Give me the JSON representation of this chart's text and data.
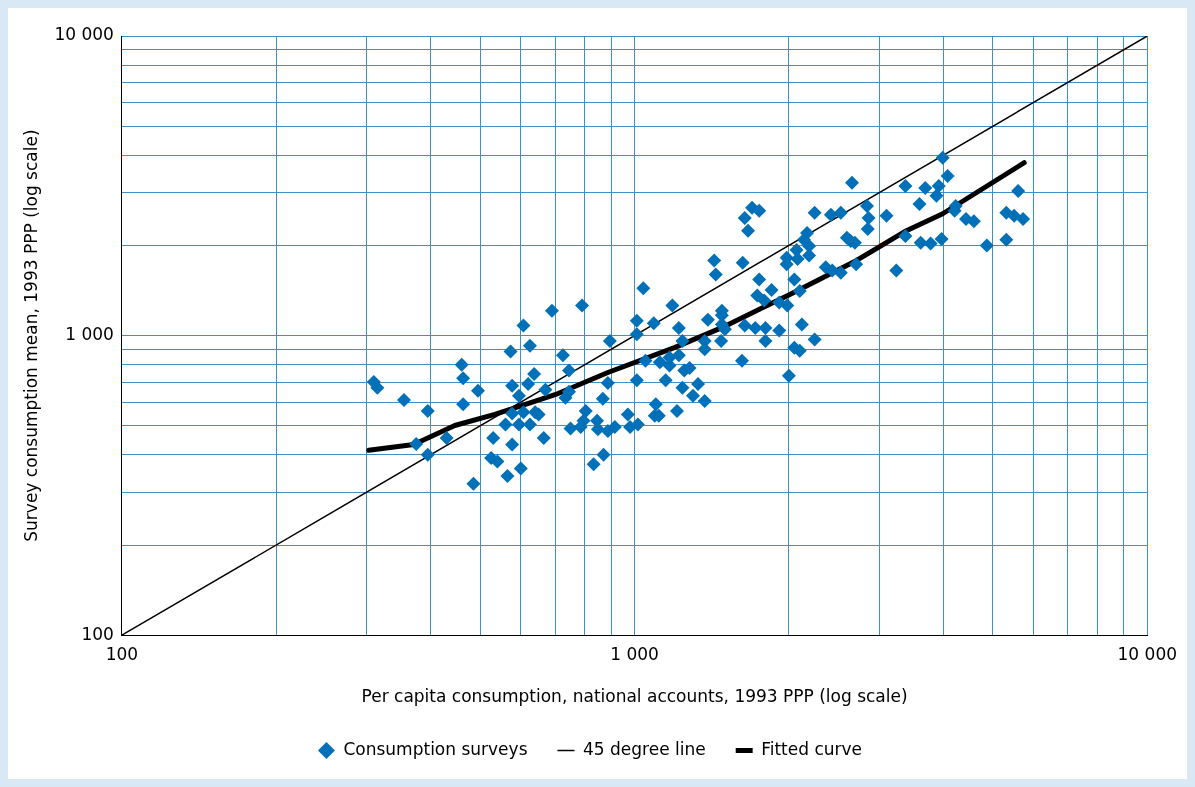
{
  "chart_data": {
    "type": "scatter",
    "xlabel": "Per capita consumption, national accounts, 1993 PPP (log scale)",
    "ylabel": "Survey consumption mean, 1993 PPP (log scale)",
    "log": "xy",
    "grid": true,
    "legend": "bottom",
    "line_style": "solid",
    "xlim": [
      100,
      10000
    ],
    "ylim": [
      100,
      10000
    ],
    "xticks": [
      {
        "value": 100,
        "label": "100"
      },
      {
        "value": 200,
        "label": null
      },
      {
        "value": 300,
        "label": null
      },
      {
        "value": 400,
        "label": null
      },
      {
        "value": 500,
        "label": null
      },
      {
        "value": 600,
        "label": null
      },
      {
        "value": 700,
        "label": null
      },
      {
        "value": 800,
        "label": null
      },
      {
        "value": 900,
        "label": null
      },
      {
        "value": 1000,
        "label": "1 000"
      },
      {
        "value": 2000,
        "label": null
      },
      {
        "value": 3000,
        "label": null
      },
      {
        "value": 4000,
        "label": null
      },
      {
        "value": 5000,
        "label": null
      },
      {
        "value": 6000,
        "label": null
      },
      {
        "value": 7000,
        "label": null
      },
      {
        "value": 8000,
        "label": null
      },
      {
        "value": 9000,
        "label": null
      },
      {
        "value": 10000,
        "label": "10 000"
      }
    ],
    "yticks": [
      {
        "value": 100,
        "label": "100"
      },
      {
        "value": 200,
        "label": null
      },
      {
        "value": 300,
        "label": null
      },
      {
        "value": 400,
        "label": null
      },
      {
        "value": 500,
        "label": null
      },
      {
        "value": 600,
        "label": null
      },
      {
        "value": 700,
        "label": null
      },
      {
        "value": 800,
        "label": null
      },
      {
        "value": 900,
        "label": null
      },
      {
        "value": 1000,
        "label": "1 000"
      },
      {
        "value": 2000,
        "label": null
      },
      {
        "value": 3000,
        "label": null
      },
      {
        "value": 4000,
        "label": null
      },
      {
        "value": 5000,
        "label": null
      },
      {
        "value": 6000,
        "label": null
      },
      {
        "value": 7000,
        "label": null
      },
      {
        "value": 8000,
        "label": null
      },
      {
        "value": 9000,
        "label": null
      },
      {
        "value": 10000,
        "label": "10 000"
      }
    ],
    "series": [
      {
        "name": "Consumption surveys",
        "marker": "diamond",
        "color": "#0070b8",
        "x": [
          310,
          315,
          355,
          375,
          395,
          395,
          430,
          460,
          463,
          463,
          495,
          485,
          530,
          525,
          540,
          565,
          577,
          573,
          607,
          625,
          637,
          690,
          577,
          620,
          670,
          595,
          577,
          607,
          640,
          560,
          595,
          625,
          650,
          665,
          600,
          790,
          1040,
          725,
          745,
          733,
          745,
          895,
          887,
          867,
          803,
          795,
          750,
          785,
          845,
          848,
          887,
          915,
          970,
          980,
          1015,
          870,
          832,
          1010,
          1010,
          1010,
          1090,
          1050,
          1120,
          1150,
          1100,
          1095,
          1115,
          1185,
          1220,
          1170,
          1170,
          1220,
          1250,
          1280,
          1240,
          1210,
          1240,
          1300,
          1330,
          1370,
          1370,
          1370,
          1390,
          1480,
          1480,
          1475,
          1500,
          1620,
          1480,
          1625,
          1640,
          1640,
          1665,
          1695,
          1750,
          1735,
          1750,
          1720,
          1790,
          1800,
          1800,
          1850,
          1915,
          1915,
          1985,
          1980,
          1980,
          2000,
          2050,
          2070,
          2080,
          2050,
          2100,
          2100,
          2120,
          2140,
          2170,
          2190,
          2190,
          2245,
          2245,
          2360,
          2415,
          2430,
          2525,
          2525,
          2595,
          2640,
          2655,
          2705,
          2690,
          2840,
          2860,
          2850,
          3100,
          3990,
          4080,
          3375,
          3690,
          3920,
          3880,
          3595,
          4230,
          4210,
          4430,
          4590,
          3375,
          3615,
          3780,
          3970,
          3240,
          4865,
          5310,
          5310,
          5500,
          5725,
          5600,
          1430,
          1440
        ],
        "values": [
          700,
          670,
          610,
          435,
          560,
          400,
          455,
          800,
          720,
          590,
          655,
          320,
          455,
          390,
          380,
          340,
          433,
          885,
          1080,
          925,
          745,
          1210,
          680,
          690,
          660,
          630,
          550,
          555,
          555,
          505,
          505,
          505,
          545,
          455,
          360,
          1260,
          1440,
          860,
          765,
          620,
          650,
          960,
          695,
          615,
          560,
          520,
          490,
          495,
          520,
          487,
          480,
          495,
          545,
          495,
          505,
          400,
          372,
          1120,
          1010,
          710,
          1100,
          825,
          815,
          710,
          590,
          540,
          540,
          1260,
          1060,
          845,
          795,
          860,
          765,
          780,
          960,
          560,
          670,
          630,
          690,
          605,
          900,
          960,
          1130,
          1210,
          1090,
          960,
          1050,
          825,
          1170,
          1750,
          1080,
          2470,
          2240,
          2670,
          2610,
          1360,
          1540,
          1060,
          1310,
          1060,
          960,
          1420,
          1040,
          1290,
          1260,
          1820,
          1730,
          735,
          1540,
          1930,
          1800,
          910,
          890,
          1410,
          1090,
          2090,
          2200,
          1990,
          1850,
          970,
          2570,
          1690,
          2530,
          1650,
          2570,
          1620,
          2120,
          2070,
          3240,
          1730,
          2040,
          2710,
          2470,
          2270,
          2510,
          3920,
          3410,
          3160,
          3110,
          3160,
          2930,
          2750,
          2710,
          2610,
          2450,
          2410,
          2150,
          2040,
          2030,
          2100,
          1650,
          2000,
          2090,
          2570,
          2510,
          2450,
          3040,
          1780,
          1600
        ]
      },
      {
        "name": "45 degree line",
        "type": "line",
        "marker": "none",
        "color": "#000000",
        "x": [
          100,
          10000
        ],
        "values": [
          100,
          10000
        ]
      },
      {
        "name": "Fitted curve",
        "type": "line",
        "marker": "none",
        "color": "#000000",
        "x": [
          303,
          371,
          446,
          534,
          702,
          887,
          1196,
          1480,
          2004,
          2704,
          3390,
          3990,
          5755
        ],
        "values": [
          414,
          433,
          501,
          546,
          636,
          753,
          912,
          1063,
          1370,
          1778,
          2239,
          2551,
          3776
        ]
      }
    ]
  }
}
